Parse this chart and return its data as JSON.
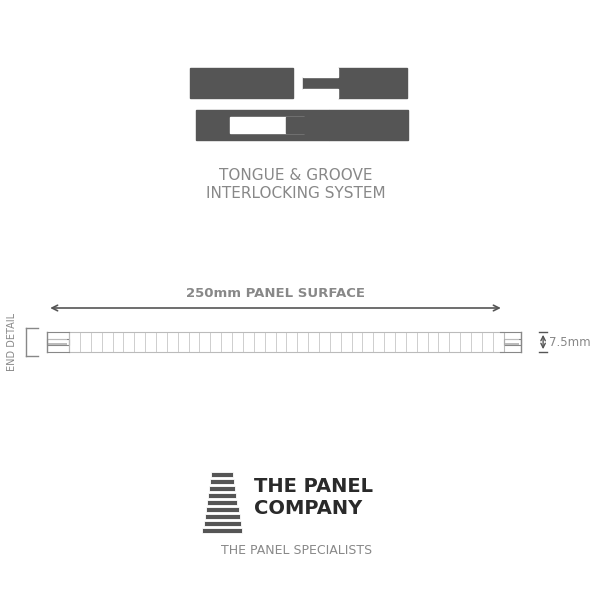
{
  "bg_color": "#ffffff",
  "dark_gray": "#555555",
  "mid_gray": "#888888",
  "light_gray": "#bbbbbb",
  "title_line1": "TONGUE & GROOVE",
  "title_line2": "INTERLOCKING SYSTEM",
  "dimension_label": "250mm PANEL SURFACE",
  "thickness_label": "7.5mm",
  "end_detail_label": "END DETAIL",
  "company_line1": "THE PANEL",
  "company_line2": "COMPANY",
  "company_sub": "THE PANEL SPECIALISTS"
}
